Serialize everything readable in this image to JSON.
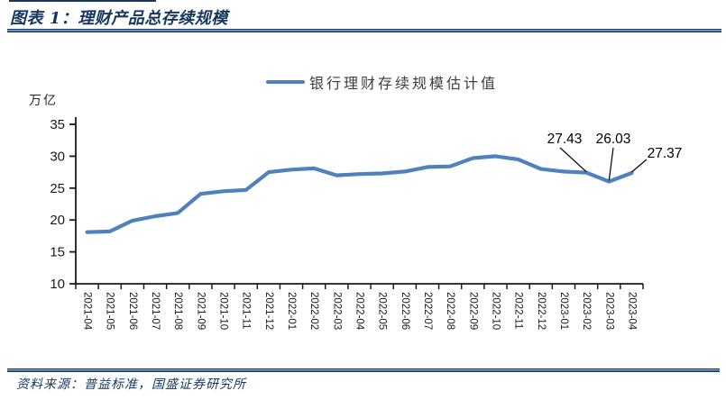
{
  "header": {
    "title": "图表 1：理财产品总存续规模"
  },
  "legend": {
    "label": "银行理财存续规模估计值"
  },
  "footer": {
    "source": "资料来源：普益标准，国盛证券研究所"
  },
  "colors": {
    "navy": "#17375e",
    "line_blue": "#4f81bd",
    "axis": "#1a1a1a",
    "annotation_text": "#000000",
    "legend_text": "#3d3d3d"
  },
  "chart_data": {
    "type": "line",
    "title": "理财产品总存续规模",
    "xlabel": "",
    "ylabel": "万亿",
    "unit_label": "万亿",
    "ylim": [
      10,
      35
    ],
    "ytick_step": 5,
    "grid": false,
    "legend_position": "top-center",
    "categories": [
      "2021-04",
      "2021-05",
      "2021-06",
      "2021-07",
      "2021-08",
      "2021-09",
      "2021-10",
      "2021-11",
      "2021-12",
      "2022-01",
      "2022-02",
      "2022-03",
      "2022-04",
      "2022-05",
      "2022-06",
      "2022-07",
      "2022-08",
      "2022-09",
      "2022-10",
      "2022-11",
      "2022-12",
      "2023-01",
      "2023-02",
      "2023-03",
      "2023-04"
    ],
    "series": [
      {
        "name": "银行理财存续规模估计值",
        "values": [
          18.1,
          18.2,
          19.9,
          20.6,
          21.1,
          24.1,
          24.5,
          24.7,
          27.5,
          27.9,
          28.1,
          27.0,
          27.2,
          27.3,
          27.6,
          28.3,
          28.4,
          29.7,
          30.0,
          29.5,
          28.0,
          27.6,
          27.43,
          26.03,
          27.37
        ]
      }
    ],
    "annotations": [
      {
        "text": "27.43",
        "category_index": 22
      },
      {
        "text": "26.03",
        "category_index": 23
      },
      {
        "text": "27.37",
        "category_index": 24
      }
    ]
  }
}
